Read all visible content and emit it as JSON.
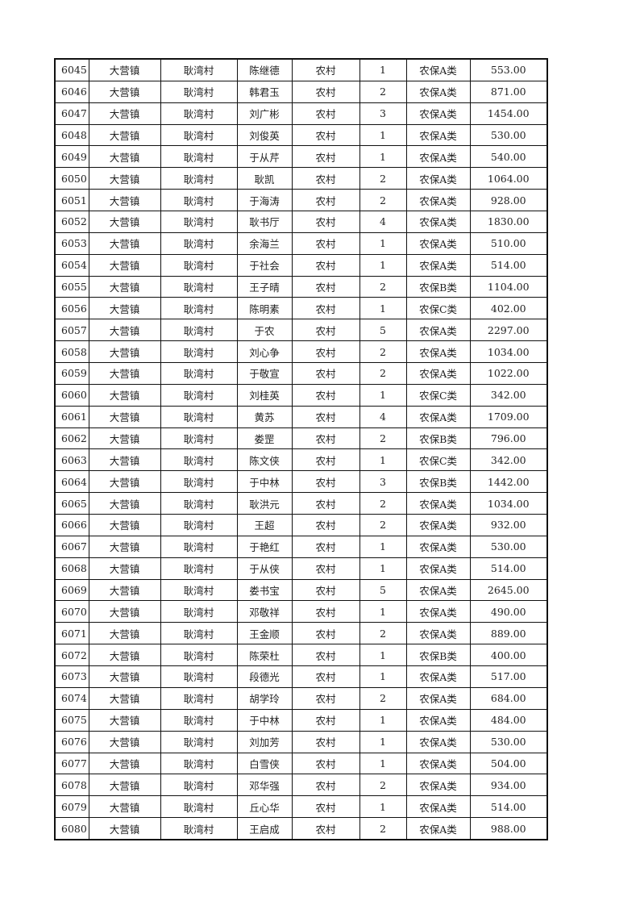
{
  "table": {
    "rows": [
      [
        "6045",
        "大营镇",
        "耿湾村",
        "陈继德",
        "农村",
        "1",
        "农保A类",
        "553.00"
      ],
      [
        "6046",
        "大营镇",
        "耿湾村",
        "韩君玉",
        "农村",
        "2",
        "农保A类",
        "871.00"
      ],
      [
        "6047",
        "大营镇",
        "耿湾村",
        "刘广彬",
        "农村",
        "3",
        "农保A类",
        "1454.00"
      ],
      [
        "6048",
        "大营镇",
        "耿湾村",
        "刘俊英",
        "农村",
        "1",
        "农保A类",
        "530.00"
      ],
      [
        "6049",
        "大营镇",
        "耿湾村",
        "于从芹",
        "农村",
        "1",
        "农保A类",
        "540.00"
      ],
      [
        "6050",
        "大营镇",
        "耿湾村",
        "耿凯",
        "农村",
        "2",
        "农保A类",
        "1064.00"
      ],
      [
        "6051",
        "大营镇",
        "耿湾村",
        "于海涛",
        "农村",
        "2",
        "农保A类",
        "928.00"
      ],
      [
        "6052",
        "大营镇",
        "耿湾村",
        "耿书厅",
        "农村",
        "4",
        "农保A类",
        "1830.00"
      ],
      [
        "6053",
        "大营镇",
        "耿湾村",
        "余海兰",
        "农村",
        "1",
        "农保A类",
        "510.00"
      ],
      [
        "6054",
        "大营镇",
        "耿湾村",
        "于社会",
        "农村",
        "1",
        "农保A类",
        "514.00"
      ],
      [
        "6055",
        "大营镇",
        "耿湾村",
        "王子晴",
        "农村",
        "2",
        "农保B类",
        "1104.00"
      ],
      [
        "6056",
        "大营镇",
        "耿湾村",
        "陈明素",
        "农村",
        "1",
        "农保C类",
        "402.00"
      ],
      [
        "6057",
        "大营镇",
        "耿湾村",
        "于农",
        "农村",
        "5",
        "农保A类",
        "2297.00"
      ],
      [
        "6058",
        "大营镇",
        "耿湾村",
        "刘心争",
        "农村",
        "2",
        "农保A类",
        "1034.00"
      ],
      [
        "6059",
        "大营镇",
        "耿湾村",
        "于敬宣",
        "农村",
        "2",
        "农保A类",
        "1022.00"
      ],
      [
        "6060",
        "大营镇",
        "耿湾村",
        "刘桂英",
        "农村",
        "1",
        "农保C类",
        "342.00"
      ],
      [
        "6061",
        "大营镇",
        "耿湾村",
        "黄苏",
        "农村",
        "4",
        "农保A类",
        "1709.00"
      ],
      [
        "6062",
        "大营镇",
        "耿湾村",
        "娄罡",
        "农村",
        "2",
        "农保B类",
        "796.00"
      ],
      [
        "6063",
        "大营镇",
        "耿湾村",
        "陈文侠",
        "农村",
        "1",
        "农保C类",
        "342.00"
      ],
      [
        "6064",
        "大营镇",
        "耿湾村",
        "于中林",
        "农村",
        "3",
        "农保B类",
        "1442.00"
      ],
      [
        "6065",
        "大营镇",
        "耿湾村",
        "耿洪元",
        "农村",
        "2",
        "农保A类",
        "1034.00"
      ],
      [
        "6066",
        "大营镇",
        "耿湾村",
        "王超",
        "农村",
        "2",
        "农保A类",
        "932.00"
      ],
      [
        "6067",
        "大营镇",
        "耿湾村",
        "于艳红",
        "农村",
        "1",
        "农保A类",
        "530.00"
      ],
      [
        "6068",
        "大营镇",
        "耿湾村",
        "于从侠",
        "农村",
        "1",
        "农保A类",
        "514.00"
      ],
      [
        "6069",
        "大营镇",
        "耿湾村",
        "娄书宝",
        "农村",
        "5",
        "农保A类",
        "2645.00"
      ],
      [
        "6070",
        "大营镇",
        "耿湾村",
        "邓敬祥",
        "农村",
        "1",
        "农保A类",
        "490.00"
      ],
      [
        "6071",
        "大营镇",
        "耿湾村",
        "王金顺",
        "农村",
        "2",
        "农保A类",
        "889.00"
      ],
      [
        "6072",
        "大营镇",
        "耿湾村",
        "陈荣杜",
        "农村",
        "1",
        "农保B类",
        "400.00"
      ],
      [
        "6073",
        "大营镇",
        "耿湾村",
        "段德光",
        "农村",
        "1",
        "农保A类",
        "517.00"
      ],
      [
        "6074",
        "大营镇",
        "耿湾村",
        "胡学玲",
        "农村",
        "2",
        "农保A类",
        "684.00"
      ],
      [
        "6075",
        "大营镇",
        "耿湾村",
        "于中林",
        "农村",
        "1",
        "农保A类",
        "484.00"
      ],
      [
        "6076",
        "大营镇",
        "耿湾村",
        "刘加芳",
        "农村",
        "1",
        "农保A类",
        "530.00"
      ],
      [
        "6077",
        "大营镇",
        "耿湾村",
        "白雪侠",
        "农村",
        "1",
        "农保A类",
        "504.00"
      ],
      [
        "6078",
        "大营镇",
        "耿湾村",
        "邓华强",
        "农村",
        "2",
        "农保A类",
        "934.00"
      ],
      [
        "6079",
        "大营镇",
        "耿湾村",
        "丘心华",
        "农村",
        "1",
        "农保A类",
        "514.00"
      ],
      [
        "6080",
        "大营镇",
        "耿湾村",
        "王启成",
        "农村",
        "2",
        "农保A类",
        "988.00"
      ]
    ]
  }
}
